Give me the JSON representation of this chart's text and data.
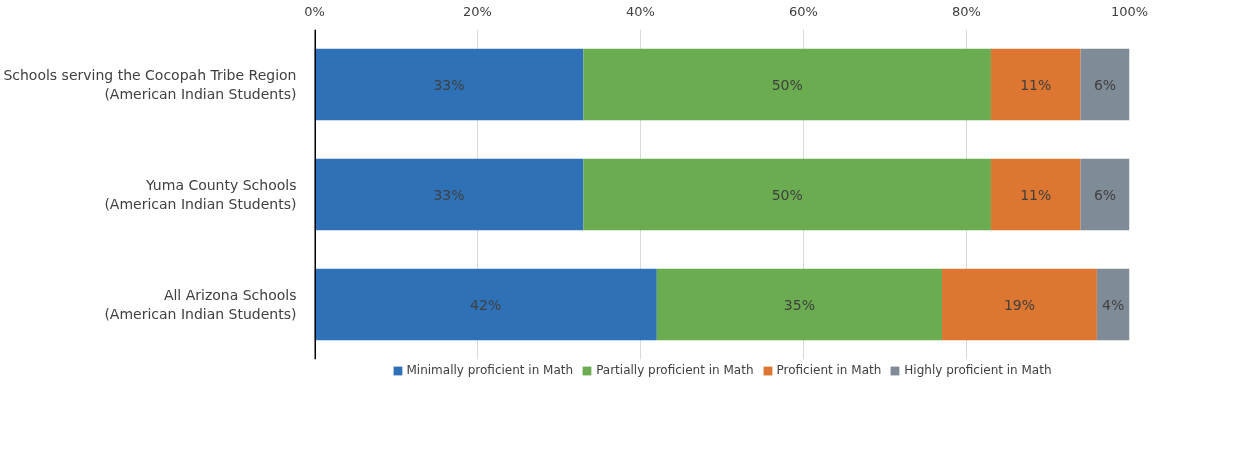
{
  "chart_data": {
    "type": "bar",
    "orientation": "horizontal",
    "stacked": true,
    "categories": [
      "Schools serving the Cocopah Tribe Region\n(American Indian Students)",
      "Yuma County Schools\n(American Indian Students)",
      "All Arizona Schools\n(American Indian Students)"
    ],
    "series": [
      {
        "name": "Minimally proficient in Math",
        "color": "#2e71b7",
        "values": [
          33,
          33,
          42
        ],
        "value_labels": [
          "33%",
          "33%",
          "42%"
        ]
      },
      {
        "name": "Partially proficient in Math",
        "color": "#6aac4f",
        "values": [
          50,
          50,
          35
        ],
        "value_labels": [
          "50%",
          "50%",
          "35%"
        ]
      },
      {
        "name": "Proficient in Math",
        "color": "#dc7630",
        "values": [
          11,
          11,
          19
        ],
        "value_labels": [
          "11%",
          "11%",
          "19%"
        ]
      },
      {
        "name": "Highly proficient in Math",
        "color": "#7f8b96",
        "values": [
          6,
          6,
          4
        ],
        "value_labels": [
          "6%",
          "6%",
          "4%"
        ]
      }
    ],
    "xlim": [
      0,
      100
    ],
    "xticks": [
      {
        "value": 0,
        "label": "0%"
      },
      {
        "value": 20,
        "label": "20%"
      },
      {
        "value": 40,
        "label": "40%"
      },
      {
        "value": 60,
        "label": "60%"
      },
      {
        "value": 80,
        "label": "80%"
      },
      {
        "value": 100,
        "label": "100%"
      }
    ],
    "grid": "x",
    "legend": "bottom"
  }
}
